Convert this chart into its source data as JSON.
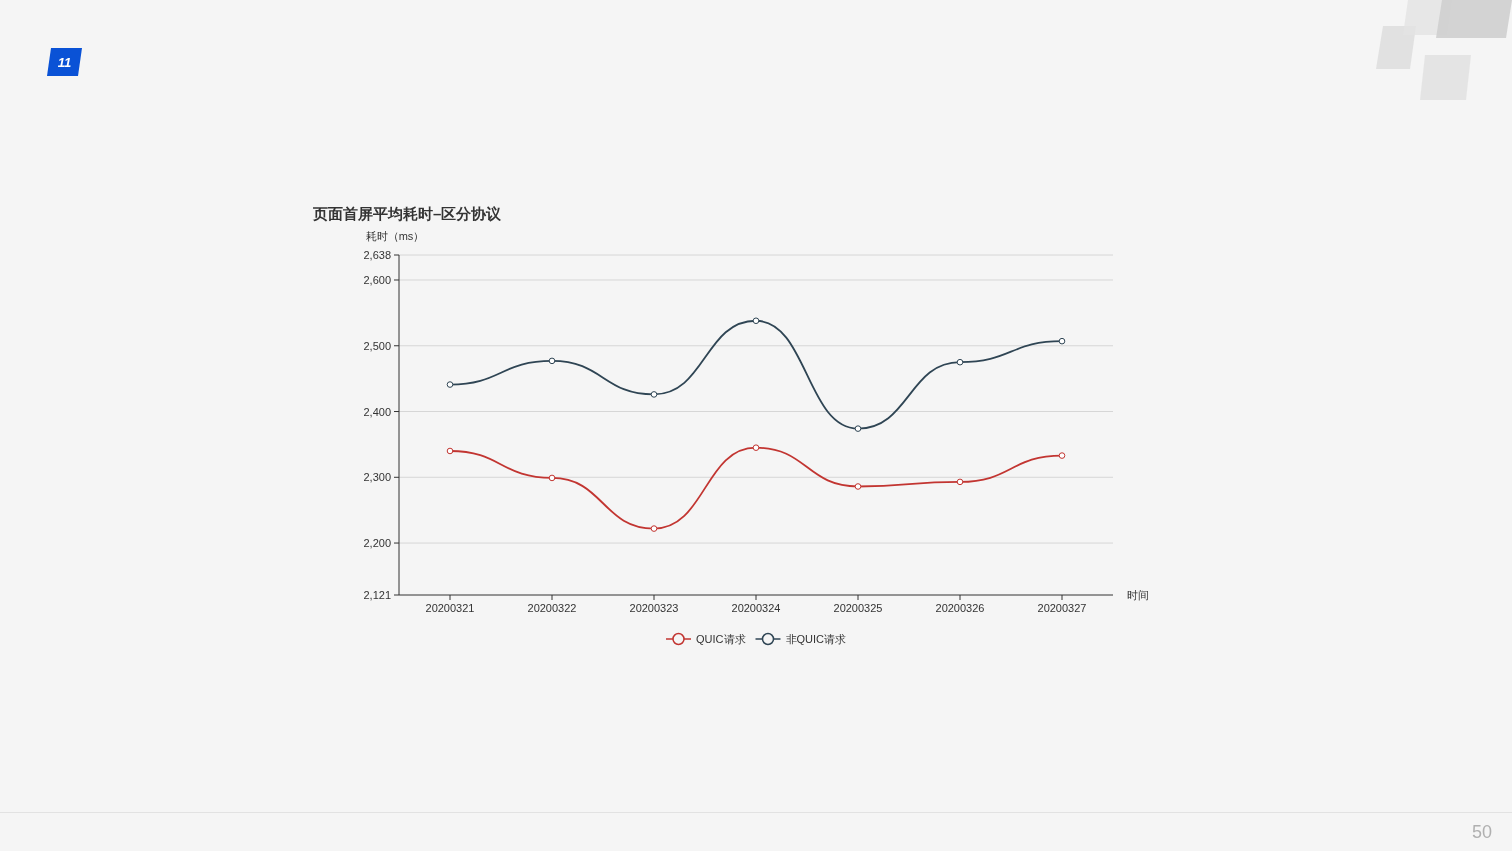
{
  "chart_data": {
    "type": "line",
    "title": "页面首屏平均耗时–区分协议",
    "ylabel": "耗时（ms）",
    "xlabel": "时间",
    "categories": [
      "20200321",
      "20200322",
      "20200323",
      "20200324",
      "20200325",
      "20200326",
      "20200327"
    ],
    "series": [
      {
        "name": "QUIC请求",
        "color": "#c23531",
        "values": [
          2340,
          2299,
          2222,
          2345,
          2286,
          2293,
          2333
        ]
      },
      {
        "name": "非QUIC请求",
        "color": "#2f4554",
        "values": [
          2441,
          2477,
          2426,
          2538,
          2374,
          2475,
          2507
        ]
      }
    ],
    "ylim": [
      2121,
      2638
    ],
    "yticks": [
      {
        "value": 2121,
        "label": "2,121"
      },
      {
        "value": 2200,
        "label": "2,200"
      },
      {
        "value": 2300,
        "label": "2,300"
      },
      {
        "value": 2400,
        "label": "2,400"
      },
      {
        "value": 2500,
        "label": "2,500"
      },
      {
        "value": 2600,
        "label": "2,600"
      },
      {
        "value": 2638,
        "label": "2,638"
      }
    ],
    "grid": "y",
    "legend": "bottom",
    "marker": "circle",
    "line_style": "solid",
    "annotations": [
      "11",
      "50"
    ]
  }
}
